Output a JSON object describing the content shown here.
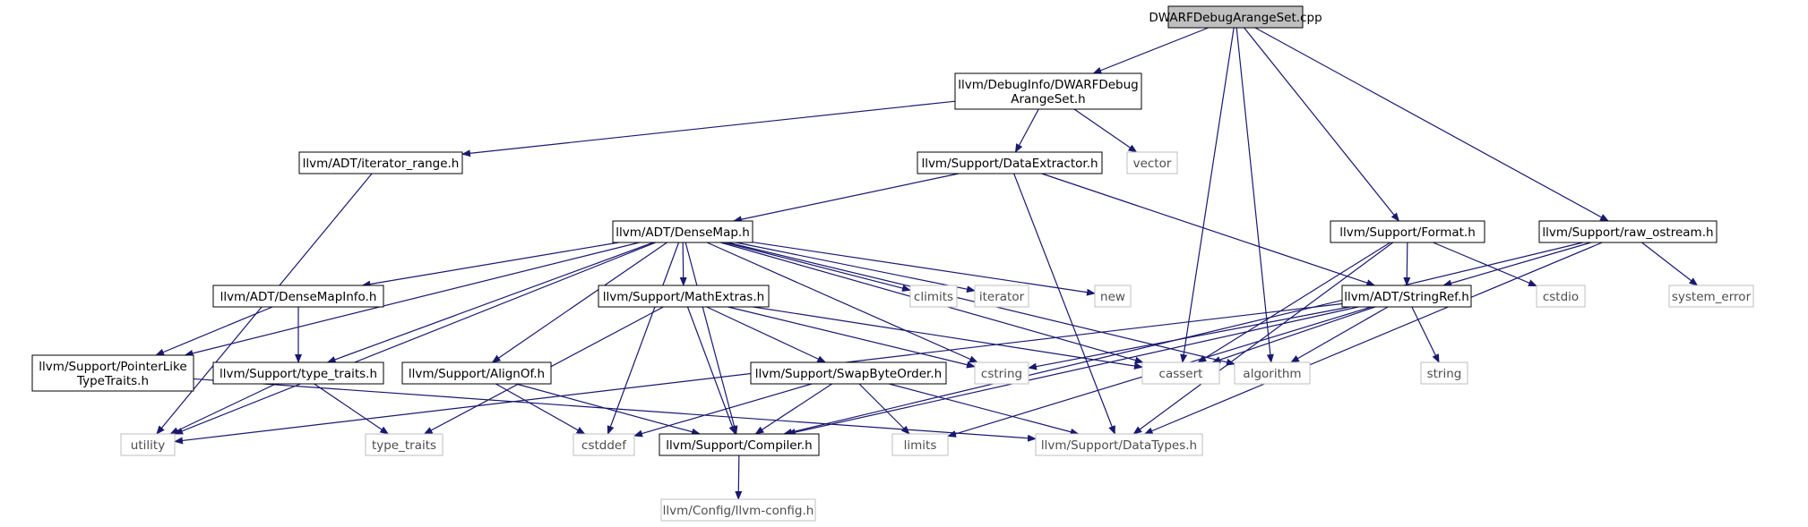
{
  "graph": {
    "nodes": [
      {
        "id": "root",
        "lines": [
          "DWARFDebugArangeSet.cpp"
        ],
        "kind": "root"
      },
      {
        "id": "dwarf_h",
        "lines": [
          "llvm/DebugInfo/DWARFDebug",
          "ArangeSet.h"
        ],
        "kind": "header"
      },
      {
        "id": "iter_range",
        "lines": [
          "llvm/ADT/iterator_range.h"
        ],
        "kind": "header"
      },
      {
        "id": "dataext",
        "lines": [
          "llvm/Support/DataExtractor.h"
        ],
        "kind": "header"
      },
      {
        "id": "vector",
        "lines": [
          "vector"
        ],
        "kind": "system"
      },
      {
        "id": "densemap",
        "lines": [
          "llvm/ADT/DenseMap.h"
        ],
        "kind": "header"
      },
      {
        "id": "format",
        "lines": [
          "llvm/Support/Format.h"
        ],
        "kind": "header"
      },
      {
        "id": "raw_os",
        "lines": [
          "llvm/Support/raw_ostream.h"
        ],
        "kind": "header"
      },
      {
        "id": "climits",
        "lines": [
          "climits"
        ],
        "kind": "system"
      },
      {
        "id": "iterator",
        "lines": [
          "iterator"
        ],
        "kind": "system"
      },
      {
        "id": "new",
        "lines": [
          "new"
        ],
        "kind": "system"
      },
      {
        "id": "cstdio",
        "lines": [
          "cstdio"
        ],
        "kind": "system"
      },
      {
        "id": "system_error",
        "lines": [
          "system_error"
        ],
        "kind": "system"
      },
      {
        "id": "densemapinfo",
        "lines": [
          "llvm/ADT/DenseMapInfo.h"
        ],
        "kind": "header"
      },
      {
        "id": "mathextras",
        "lines": [
          "llvm/Support/MathExtras.h"
        ],
        "kind": "header"
      },
      {
        "id": "stringref",
        "lines": [
          "llvm/ADT/StringRef.h"
        ],
        "kind": "header"
      },
      {
        "id": "pointerlike",
        "lines": [
          "llvm/Support/PointerLike",
          "TypeTraits.h"
        ],
        "kind": "header"
      },
      {
        "id": "typetraits_h",
        "lines": [
          "llvm/Support/type_traits.h"
        ],
        "kind": "header"
      },
      {
        "id": "alignof",
        "lines": [
          "llvm/Support/AlignOf.h"
        ],
        "kind": "header"
      },
      {
        "id": "swapbyte",
        "lines": [
          "llvm/Support/SwapByteOrder.h"
        ],
        "kind": "header"
      },
      {
        "id": "cstring",
        "lines": [
          "cstring"
        ],
        "kind": "system"
      },
      {
        "id": "cassert",
        "lines": [
          "cassert"
        ],
        "kind": "system"
      },
      {
        "id": "algorithm",
        "lines": [
          "algorithm"
        ],
        "kind": "system"
      },
      {
        "id": "string",
        "lines": [
          "string"
        ],
        "kind": "system"
      },
      {
        "id": "utility",
        "lines": [
          "utility"
        ],
        "kind": "system"
      },
      {
        "id": "type_traits",
        "lines": [
          "type_traits"
        ],
        "kind": "system"
      },
      {
        "id": "cstddef",
        "lines": [
          "cstddef"
        ],
        "kind": "system"
      },
      {
        "id": "compiler",
        "lines": [
          "llvm/Support/Compiler.h"
        ],
        "kind": "header"
      },
      {
        "id": "limits",
        "lines": [
          "limits"
        ],
        "kind": "system"
      },
      {
        "id": "datatypes",
        "lines": [
          "llvm/Support/DataTypes.h"
        ],
        "kind": "system"
      },
      {
        "id": "llvmconfig",
        "lines": [
          "llvm/Config/llvm-config.h"
        ],
        "kind": "system"
      }
    ],
    "edges": [
      [
        "root",
        "dwarf_h"
      ],
      [
        "root",
        "cassert"
      ],
      [
        "root",
        "algorithm"
      ],
      [
        "root",
        "format"
      ],
      [
        "root",
        "raw_os"
      ],
      [
        "dwarf_h",
        "iter_range"
      ],
      [
        "dwarf_h",
        "dataext"
      ],
      [
        "dwarf_h",
        "vector"
      ],
      [
        "iter_range",
        "utility"
      ],
      [
        "dataext",
        "densemap"
      ],
      [
        "dataext",
        "stringref"
      ],
      [
        "dataext",
        "datatypes"
      ],
      [
        "densemap",
        "utility"
      ],
      [
        "densemap",
        "pointerlike"
      ],
      [
        "densemap",
        "densemapinfo"
      ],
      [
        "densemap",
        "typetraits_h"
      ],
      [
        "densemap",
        "alignof"
      ],
      [
        "densemap",
        "cstddef"
      ],
      [
        "densemap",
        "compiler"
      ],
      [
        "densemap",
        "mathextras"
      ],
      [
        "densemap",
        "cstring"
      ],
      [
        "densemap",
        "cassert"
      ],
      [
        "densemap",
        "algorithm"
      ],
      [
        "densemap",
        "climits"
      ],
      [
        "densemap",
        "iterator"
      ],
      [
        "densemap",
        "new"
      ],
      [
        "format",
        "stringref"
      ],
      [
        "format",
        "cassert"
      ],
      [
        "format",
        "cstdio"
      ],
      [
        "format",
        "datatypes"
      ],
      [
        "raw_os",
        "stringref"
      ],
      [
        "raw_os",
        "system_error"
      ],
      [
        "raw_os",
        "compiler"
      ],
      [
        "raw_os",
        "datatypes"
      ],
      [
        "densemapinfo",
        "pointerlike"
      ],
      [
        "densemapinfo",
        "typetraits_h"
      ],
      [
        "mathextras",
        "swapbyte"
      ],
      [
        "mathextras",
        "compiler"
      ],
      [
        "mathextras",
        "type_traits"
      ],
      [
        "mathextras",
        "cstring"
      ],
      [
        "mathextras",
        "cassert"
      ],
      [
        "stringref",
        "cstring"
      ],
      [
        "stringref",
        "cassert"
      ],
      [
        "stringref",
        "algorithm"
      ],
      [
        "stringref",
        "string"
      ],
      [
        "stringref",
        "utility"
      ],
      [
        "stringref",
        "compiler"
      ],
      [
        "stringref",
        "limits"
      ],
      [
        "pointerlike",
        "datatypes"
      ],
      [
        "typetraits_h",
        "utility"
      ],
      [
        "typetraits_h",
        "type_traits"
      ],
      [
        "alignof",
        "cstddef"
      ],
      [
        "alignof",
        "compiler"
      ],
      [
        "swapbyte",
        "compiler"
      ],
      [
        "swapbyte",
        "cstddef"
      ],
      [
        "swapbyte",
        "limits"
      ],
      [
        "swapbyte",
        "datatypes"
      ],
      [
        "compiler",
        "llvmconfig"
      ]
    ]
  },
  "colors": {
    "edge": "#191970",
    "header_border": "#000000",
    "system_border": "#bfbfbf",
    "root_fill": "#bfbfbf",
    "text": "#000000",
    "system_text": "#4d4d4d"
  }
}
